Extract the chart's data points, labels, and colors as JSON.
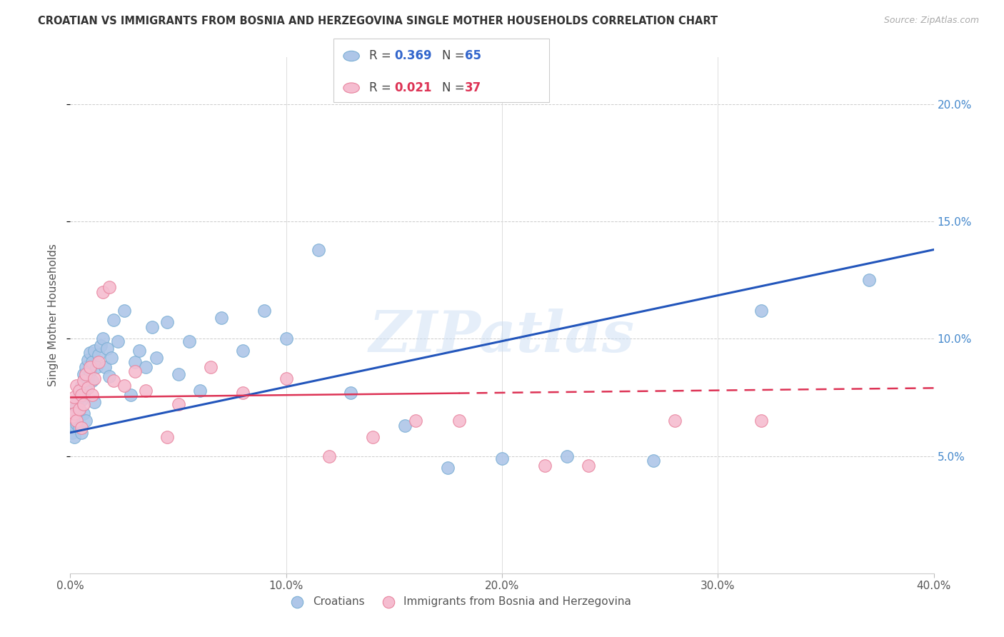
{
  "title": "CROATIAN VS IMMIGRANTS FROM BOSNIA AND HERZEGOVINA SINGLE MOTHER HOUSEHOLDS CORRELATION CHART",
  "source": "Source: ZipAtlas.com",
  "ylabel": "Single Mother Households",
  "xlim": [
    0,
    0.4
  ],
  "ylim": [
    0,
    0.22
  ],
  "xticks": [
    0.0,
    0.1,
    0.2,
    0.3,
    0.4
  ],
  "xtick_labels": [
    "0.0%",
    "10.0%",
    "20.0%",
    "30.0%",
    "40.0%"
  ],
  "yticks": [
    0.05,
    0.1,
    0.15,
    0.2
  ],
  "ytick_labels": [
    "5.0%",
    "10.0%",
    "15.0%",
    "20.0%"
  ],
  "series1_label": "Croatians",
  "series1_R": "0.369",
  "series1_N": "65",
  "series1_color": "#aec6e8",
  "series1_edge_color": "#7bafd4",
  "series2_label": "Immigrants from Bosnia and Herzegovina",
  "series2_R": "0.021",
  "series2_N": "37",
  "series2_color": "#f5bdd0",
  "series2_edge_color": "#e8849e",
  "trendline1_color": "#2255bb",
  "trendline2_color": "#dd3355",
  "watermark": "ZIPatlas",
  "background_color": "#ffffff",
  "series1_x": [
    0.001,
    0.001,
    0.001,
    0.002,
    0.002,
    0.002,
    0.002,
    0.003,
    0.003,
    0.003,
    0.003,
    0.004,
    0.004,
    0.004,
    0.005,
    0.005,
    0.005,
    0.006,
    0.006,
    0.006,
    0.007,
    0.007,
    0.007,
    0.008,
    0.008,
    0.009,
    0.009,
    0.01,
    0.01,
    0.011,
    0.011,
    0.012,
    0.013,
    0.014,
    0.015,
    0.016,
    0.017,
    0.018,
    0.019,
    0.02,
    0.022,
    0.025,
    0.028,
    0.03,
    0.032,
    0.035,
    0.038,
    0.04,
    0.045,
    0.05,
    0.055,
    0.06,
    0.07,
    0.08,
    0.09,
    0.1,
    0.115,
    0.13,
    0.155,
    0.175,
    0.2,
    0.23,
    0.27,
    0.32,
    0.37
  ],
  "series1_y": [
    0.065,
    0.068,
    0.06,
    0.07,
    0.063,
    0.067,
    0.058,
    0.072,
    0.066,
    0.071,
    0.064,
    0.075,
    0.069,
    0.062,
    0.08,
    0.074,
    0.06,
    0.085,
    0.076,
    0.068,
    0.088,
    0.079,
    0.065,
    0.091,
    0.083,
    0.086,
    0.094,
    0.09,
    0.082,
    0.095,
    0.073,
    0.088,
    0.093,
    0.097,
    0.1,
    0.088,
    0.096,
    0.084,
    0.092,
    0.108,
    0.099,
    0.112,
    0.076,
    0.09,
    0.095,
    0.088,
    0.105,
    0.092,
    0.107,
    0.085,
    0.099,
    0.078,
    0.109,
    0.095,
    0.112,
    0.1,
    0.138,
    0.077,
    0.063,
    0.045,
    0.049,
    0.05,
    0.048,
    0.112,
    0.125
  ],
  "series2_x": [
    0.001,
    0.001,
    0.002,
    0.002,
    0.003,
    0.003,
    0.004,
    0.004,
    0.005,
    0.005,
    0.006,
    0.006,
    0.007,
    0.008,
    0.009,
    0.01,
    0.011,
    0.013,
    0.015,
    0.018,
    0.02,
    0.025,
    0.03,
    0.035,
    0.045,
    0.05,
    0.065,
    0.08,
    0.1,
    0.12,
    0.14,
    0.16,
    0.18,
    0.22,
    0.24,
    0.28,
    0.32
  ],
  "series2_y": [
    0.073,
    0.067,
    0.075,
    0.068,
    0.08,
    0.065,
    0.078,
    0.07,
    0.076,
    0.062,
    0.082,
    0.072,
    0.085,
    0.079,
    0.088,
    0.076,
    0.083,
    0.09,
    0.12,
    0.122,
    0.082,
    0.08,
    0.086,
    0.078,
    0.058,
    0.072,
    0.088,
    0.077,
    0.083,
    0.05,
    0.058,
    0.065,
    0.065,
    0.046,
    0.046,
    0.065,
    0.065
  ],
  "trendline1_start_y": 0.06,
  "trendline1_end_y": 0.138,
  "trendline2_start_y": 0.075,
  "trendline2_end_y": 0.079
}
